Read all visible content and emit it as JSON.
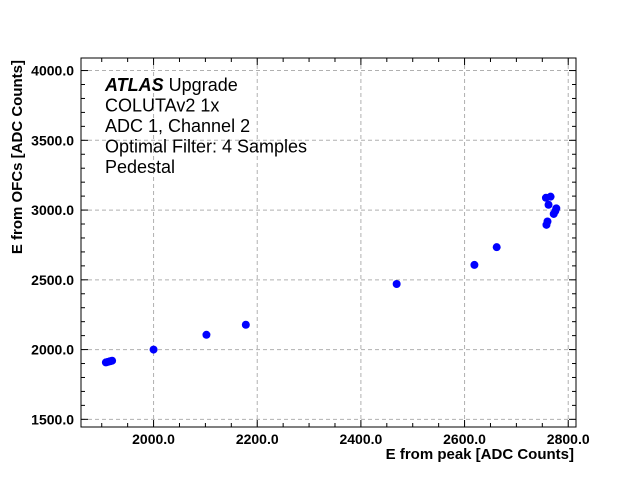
{
  "chart_data": {
    "type": "scatter",
    "xlabel": "E from peak [ADC Counts]",
    "ylabel": "E from OFCs [ADC Counts]",
    "xlim": [
      1860,
      2815
    ],
    "ylim": [
      1445,
      4090
    ],
    "x_ticks": [
      2000,
      2200,
      2400,
      2600,
      2800
    ],
    "x_tick_labels": [
      "2000.0",
      "2200.0",
      "2400.0",
      "2600.0",
      "2800.0"
    ],
    "y_ticks": [
      1500,
      2000,
      2500,
      3000,
      3500,
      4000
    ],
    "y_tick_labels": [
      "1500.0",
      "2000.0",
      "2500.0",
      "3000.0",
      "3500.0",
      "4000.0"
    ],
    "grid": true,
    "marker_color": "#0000ff",
    "annotation": {
      "brand": "ATLAS",
      "brand_suffix": " Upgrade",
      "lines": [
        "COLUTAv2 1x",
        "ADC 1, Channel 2",
        "Optimal Filter: 4 Samples",
        "Pedestal"
      ]
    },
    "series": [
      {
        "points": [
          {
            "x": 1908,
            "y": 1908
          },
          {
            "x": 1912,
            "y": 1912
          },
          {
            "x": 1916,
            "y": 1916
          },
          {
            "x": 1920,
            "y": 1920
          },
          {
            "x": 2000,
            "y": 2000
          },
          {
            "x": 2102,
            "y": 2106
          },
          {
            "x": 2178,
            "y": 2178
          },
          {
            "x": 2469,
            "y": 2470
          },
          {
            "x": 2619,
            "y": 2607
          },
          {
            "x": 2662,
            "y": 2734
          },
          {
            "x": 2758,
            "y": 2894
          },
          {
            "x": 2760,
            "y": 2918
          },
          {
            "x": 2757,
            "y": 3088
          },
          {
            "x": 2762,
            "y": 3038
          },
          {
            "x": 2766,
            "y": 3096
          },
          {
            "x": 2772,
            "y": 2972
          },
          {
            "x": 2775,
            "y": 2992
          },
          {
            "x": 2777,
            "y": 3012
          }
        ]
      }
    ]
  }
}
